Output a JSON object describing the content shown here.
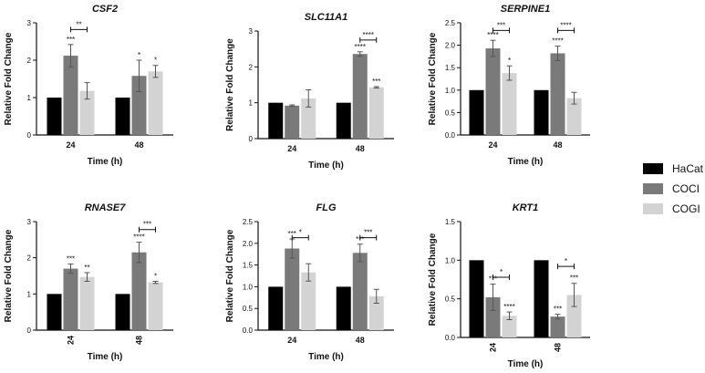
{
  "colors": {
    "HaCat": "#000000",
    "COCI": "#7a7a7a",
    "COGI": "#d3d3d3"
  },
  "legend": {
    "items": [
      "HaCat",
      "COCI",
      "COGI"
    ]
  },
  "chart_data": [
    {
      "type": "bar",
      "title": "CSF2",
      "xlabel": "Time (h)",
      "ylabel": "Relative Fold Change",
      "categories": [
        "24",
        "48"
      ],
      "ylim": [
        0,
        3
      ],
      "yticks": [
        "0",
        "1",
        "2",
        "3"
      ],
      "series": [
        {
          "name": "HaCat",
          "values": [
            1.0,
            1.0
          ],
          "errors": [
            0,
            0
          ],
          "stars": [
            "",
            ""
          ]
        },
        {
          "name": "COCI",
          "values": [
            2.12,
            1.58
          ],
          "errors": [
            0.3,
            0.42
          ],
          "stars": [
            "***",
            "*"
          ]
        },
        {
          "name": "COGI",
          "values": [
            1.18,
            1.7
          ],
          "errors": [
            0.22,
            0.16
          ],
          "stars": [
            "",
            "*"
          ]
        }
      ],
      "brackets": [
        {
          "group": 0,
          "from": 1,
          "to": 2,
          "y": 2.82,
          "stars": "**"
        }
      ]
    },
    {
      "type": "bar",
      "title": "SLC11A1",
      "xlabel": "Time (h)",
      "ylabel": "Relative Fold Change",
      "categories": [
        "24",
        "48"
      ],
      "ylim": [
        0,
        3
      ],
      "yticks": [
        "0",
        "1",
        "2",
        "3"
      ],
      "series": [
        {
          "name": "HaCat",
          "values": [
            1.0,
            1.0
          ],
          "errors": [
            0,
            0
          ],
          "stars": [
            "",
            ""
          ]
        },
        {
          "name": "COCI",
          "values": [
            0.92,
            2.36
          ],
          "errors": [
            0.02,
            0.06
          ],
          "stars": [
            "",
            "****"
          ]
        },
        {
          "name": "COGI",
          "values": [
            1.12,
            1.43
          ],
          "errors": [
            0.24,
            0.02
          ],
          "stars": [
            "",
            "***"
          ]
        }
      ],
      "brackets": [
        {
          "group": 1,
          "from": 1,
          "to": 2,
          "y": 2.75,
          "stars": "****"
        }
      ]
    },
    {
      "type": "bar",
      "title": "SERPINE1",
      "xlabel": "Time (h)",
      "ylabel": "Relative Fold Change",
      "categories": [
        "24",
        "48"
      ],
      "ylim": [
        0,
        2.5
      ],
      "yticks": [
        "0.0",
        "0.5",
        "1.0",
        "1.5",
        "2.0",
        "2.5"
      ],
      "series": [
        {
          "name": "HaCat",
          "values": [
            1.0,
            1.0
          ],
          "errors": [
            0,
            0
          ],
          "stars": [
            "",
            ""
          ]
        },
        {
          "name": "COCI",
          "values": [
            1.93,
            1.82
          ],
          "errors": [
            0.18,
            0.16
          ],
          "stars": [
            "****",
            "****"
          ]
        },
        {
          "name": "COGI",
          "values": [
            1.38,
            0.82
          ],
          "errors": [
            0.16,
            0.13
          ],
          "stars": [
            "*",
            ""
          ]
        }
      ],
      "brackets": [
        {
          "group": 0,
          "from": 1,
          "to": 2,
          "y": 2.33,
          "stars": "***"
        },
        {
          "group": 1,
          "from": 1,
          "to": 2,
          "y": 2.33,
          "stars": "****"
        }
      ]
    },
    {
      "type": "bar",
      "title": "RNASE7",
      "xlabel": "Time (h)",
      "ylabel": "Relative Fold Change",
      "categories": [
        "24",
        "48"
      ],
      "ylim": [
        0,
        3
      ],
      "yticks": [
        "0",
        "1",
        "2",
        "3"
      ],
      "series": [
        {
          "name": "HaCat",
          "values": [
            1.0,
            1.0
          ],
          "errors": [
            0,
            0
          ],
          "stars": [
            "",
            ""
          ]
        },
        {
          "name": "COCI",
          "values": [
            1.7,
            2.15
          ],
          "errors": [
            0.13,
            0.28
          ],
          "stars": [
            "***",
            "****"
          ]
        },
        {
          "name": "COGI",
          "values": [
            1.47,
            1.32
          ],
          "errors": [
            0.12,
            0.03
          ],
          "stars": [
            "**",
            "*"
          ]
        }
      ],
      "brackets": [
        {
          "group": 1,
          "from": 1,
          "to": 2,
          "y": 2.78,
          "stars": "***"
        }
      ]
    },
    {
      "type": "bar",
      "title": "FLG",
      "xlabel": "Time (h)",
      "ylabel": "Relative Fold Change",
      "categories": [
        "24",
        "48"
      ],
      "ylim": [
        0,
        2.5
      ],
      "yticks": [
        "0.0",
        "0.5",
        "1.0",
        "1.5",
        "2.0",
        "2.5"
      ],
      "series": [
        {
          "name": "HaCat",
          "values": [
            1.0,
            1.0
          ],
          "errors": [
            0,
            0
          ],
          "stars": [
            "",
            ""
          ]
        },
        {
          "name": "COCI",
          "values": [
            1.88,
            1.78
          ],
          "errors": [
            0.22,
            0.2
          ],
          "stars": [
            "***",
            "***"
          ]
        },
        {
          "name": "COGI",
          "values": [
            1.33,
            0.78
          ],
          "errors": [
            0.2,
            0.16
          ],
          "stars": [
            "",
            ""
          ]
        }
      ],
      "brackets": [
        {
          "group": 0,
          "from": 1,
          "to": 2,
          "y": 2.13,
          "stars": "*"
        },
        {
          "group": 1,
          "from": 1,
          "to": 2,
          "y": 2.13,
          "stars": "***"
        }
      ]
    },
    {
      "type": "bar",
      "title": "KRT1",
      "xlabel": "Time (h)",
      "ylabel": "Relative Fold Change",
      "categories": [
        "24",
        "48"
      ],
      "ylim": [
        0,
        1.5
      ],
      "yticks": [
        "0.0",
        "0.5",
        "1.0",
        "1.5"
      ],
      "series": [
        {
          "name": "HaCat",
          "values": [
            1.0,
            1.0
          ],
          "errors": [
            0,
            0
          ],
          "stars": [
            "",
            ""
          ]
        },
        {
          "name": "COCI",
          "values": [
            0.52,
            0.27
          ],
          "errors": [
            0.17,
            0.03
          ],
          "stars": [
            "***",
            "***"
          ]
        },
        {
          "name": "COGI",
          "values": [
            0.28,
            0.55
          ],
          "errors": [
            0.05,
            0.15
          ],
          "stars": [
            "****",
            "***"
          ]
        }
      ],
      "brackets": [
        {
          "group": 0,
          "from": 1,
          "to": 2,
          "y": 0.78,
          "stars": "*"
        },
        {
          "group": 1,
          "from": 1,
          "to": 2,
          "y": 0.92,
          "stars": "*"
        }
      ]
    }
  ]
}
